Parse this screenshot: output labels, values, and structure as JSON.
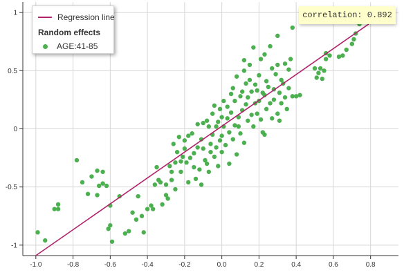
{
  "chart_data": {
    "type": "scatter",
    "title": "",
    "xlabel": "",
    "ylabel": "",
    "xlim": [
      -1.07,
      0.95
    ],
    "ylim": [
      -1.09,
      1.09
    ],
    "x_ticks": [
      -1.0,
      -0.8,
      -0.6,
      -0.4,
      -0.2,
      0.0,
      0.2,
      0.4,
      0.6,
      0.8
    ],
    "x_tick_labels": [
      "-1.0",
      "-0.8",
      "-0.6",
      "-0.4",
      "-0.2",
      "0.0",
      "0.2",
      "0.4",
      "0.6",
      "0.8"
    ],
    "y_ticks": [
      -1,
      -0.5,
      0,
      0.5,
      1
    ],
    "y_tick_labels": [
      "-1",
      "-0.5",
      "0",
      "0.5",
      "1"
    ],
    "grid": true,
    "legend_position": "top-left",
    "regression_line": {
      "name": "Regression line",
      "color": "#b0246c",
      "points": [
        [
          -1.0,
          -1.09
        ],
        [
          0.87,
          0.99
        ]
      ]
    },
    "legend": {
      "line_label": "Regression line",
      "group_title": "Random effects"
    },
    "annotation": "correlation: 0.892",
    "series": [
      {
        "name": "AGE:41-85",
        "color": "#4caf50",
        "points": [
          [
            -0.99,
            -0.89
          ],
          [
            -0.95,
            -0.96
          ],
          [
            -0.9,
            -0.69
          ],
          [
            -0.88,
            -0.69
          ],
          [
            -0.88,
            -0.65
          ],
          [
            -0.78,
            -0.27
          ],
          [
            -0.75,
            -0.46
          ],
          [
            -0.72,
            -0.56
          ],
          [
            -0.7,
            -0.41
          ],
          [
            -0.67,
            -0.36
          ],
          [
            -0.67,
            -0.57
          ],
          [
            -0.66,
            -0.49
          ],
          [
            -0.64,
            -0.37
          ],
          [
            -0.64,
            -0.47
          ],
          [
            -0.62,
            -0.49
          ],
          [
            -0.61,
            -0.86
          ],
          [
            -0.6,
            -0.83
          ],
          [
            -0.6,
            -0.66
          ],
          [
            -0.59,
            -0.97
          ],
          [
            -0.55,
            -0.58
          ],
          [
            -0.52,
            -0.9
          ],
          [
            -0.5,
            -0.88
          ],
          [
            -0.48,
            -0.72
          ],
          [
            -0.46,
            -0.78
          ],
          [
            -0.45,
            -0.58
          ],
          [
            -0.43,
            -0.75
          ],
          [
            -0.42,
            -0.89
          ],
          [
            -0.4,
            -0.69
          ],
          [
            -0.38,
            -0.66
          ],
          [
            -0.37,
            -0.69
          ],
          [
            -0.36,
            -0.48
          ],
          [
            -0.35,
            -0.33
          ],
          [
            -0.34,
            -0.44
          ],
          [
            -0.33,
            -0.46
          ],
          [
            -0.32,
            -0.65
          ],
          [
            -0.3,
            -0.48
          ],
          [
            -0.3,
            -0.57
          ],
          [
            -0.29,
            -0.6
          ],
          [
            -0.28,
            -0.32
          ],
          [
            -0.27,
            -0.44
          ],
          [
            -0.27,
            -0.37
          ],
          [
            -0.26,
            -0.13
          ],
          [
            -0.25,
            -0.29
          ],
          [
            -0.25,
            -0.52
          ],
          [
            -0.24,
            -0.2
          ],
          [
            -0.23,
            -0.07
          ],
          [
            -0.22,
            -0.28
          ],
          [
            -0.22,
            -0.37
          ],
          [
            -0.21,
            -0.24
          ],
          [
            -0.2,
            -0.1
          ],
          [
            -0.2,
            -0.17
          ],
          [
            -0.19,
            -0.29
          ],
          [
            -0.18,
            -0.06
          ],
          [
            -0.18,
            -0.46
          ],
          [
            -0.17,
            -0.25
          ],
          [
            -0.16,
            -0.04
          ],
          [
            -0.15,
            -0.21
          ],
          [
            -0.15,
            -0.33
          ],
          [
            -0.14,
            -0.43
          ],
          [
            -0.13,
            -0.16
          ],
          [
            -0.13,
            0.04
          ],
          [
            -0.12,
            -0.35
          ],
          [
            -0.11,
            -0.48
          ],
          [
            -0.11,
            -0.09
          ],
          [
            -0.1,
            -0.17
          ],
          [
            -0.1,
            0.05
          ],
          [
            -0.09,
            -0.27
          ],
          [
            -0.08,
            0.07
          ],
          [
            -0.08,
            -0.3
          ],
          [
            -0.07,
            0.02
          ],
          [
            -0.07,
            -0.37
          ],
          [
            -0.06,
            -0.13
          ],
          [
            -0.06,
            -0.2
          ],
          [
            -0.05,
            0.13
          ],
          [
            -0.05,
            -0.05
          ],
          [
            -0.04,
            -0.24
          ],
          [
            -0.04,
            0.2
          ],
          [
            -0.03,
            0.02
          ],
          [
            -0.03,
            -0.16
          ],
          [
            -0.02,
            0.06
          ],
          [
            -0.02,
            -0.32
          ],
          [
            -0.01,
            0.17
          ],
          [
            -0.01,
            -0.1
          ],
          [
            0.0,
            0.1
          ],
          [
            0.0,
            -0.06
          ],
          [
            0.0,
            -0.2
          ],
          [
            0.01,
            0.24
          ],
          [
            0.01,
            0.02
          ],
          [
            0.02,
            -0.14
          ],
          [
            0.03,
            0.19
          ],
          [
            0.03,
            0.09
          ],
          [
            0.04,
            -0.03
          ],
          [
            0.04,
            -0.3
          ],
          [
            0.05,
            0.3
          ],
          [
            0.05,
            0.14
          ],
          [
            0.06,
            0.35
          ],
          [
            0.06,
            -0.09
          ],
          [
            0.07,
            0.03
          ],
          [
            0.07,
            0.24
          ],
          [
            0.08,
            0.45
          ],
          [
            0.08,
            -0.22
          ],
          [
            0.09,
            0.1
          ],
          [
            0.09,
            0.02
          ],
          [
            0.1,
            0.28
          ],
          [
            0.1,
            -0.04
          ],
          [
            0.11,
            0.32
          ],
          [
            0.11,
            0.16
          ],
          [
            0.12,
            0.5
          ],
          [
            0.12,
            -0.12
          ],
          [
            0.13,
            0.39
          ],
          [
            0.13,
            0.21
          ],
          [
            0.14,
            0.07
          ],
          [
            0.14,
            0.27
          ],
          [
            0.15,
            0.42
          ],
          [
            0.15,
            0.55
          ],
          [
            0.16,
            0.32
          ],
          [
            0.16,
            0.12
          ],
          [
            0.17,
            0.7
          ],
          [
            0.17,
            0.02
          ],
          [
            0.18,
            0.22
          ],
          [
            0.18,
            0.38
          ],
          [
            0.19,
            0.13
          ],
          [
            0.19,
            0.33
          ],
          [
            0.2,
            0.24
          ],
          [
            0.2,
            0.46
          ],
          [
            0.21,
            0.6
          ],
          [
            0.21,
            0.08
          ],
          [
            0.22,
            0.31
          ],
          [
            0.22,
            -0.03
          ],
          [
            0.23,
            0.29
          ],
          [
            0.23,
            0.64
          ],
          [
            0.24,
            0.17
          ],
          [
            0.24,
            0.41
          ],
          [
            0.25,
            0.36
          ],
          [
            0.26,
            0.22
          ],
          [
            0.27,
            0.52
          ],
          [
            0.27,
            0.09
          ],
          [
            0.28,
            0.34
          ],
          [
            0.28,
            0.25
          ],
          [
            0.29,
            0.47
          ],
          [
            0.3,
            0.13
          ],
          [
            0.3,
            0.55
          ],
          [
            0.31,
            0.31
          ],
          [
            0.32,
            0.42
          ],
          [
            0.32,
            0.22
          ],
          [
            0.33,
            0.39
          ],
          [
            0.34,
            0.27
          ],
          [
            0.34,
            0.56
          ],
          [
            0.35,
            0.17
          ],
          [
            0.36,
            0.51
          ],
          [
            0.36,
            0.35
          ],
          [
            0.38,
            0.28
          ],
          [
            0.4,
            0.28
          ],
          [
            0.42,
            0.29
          ],
          [
            0.38,
            0.87
          ],
          [
            0.37,
            0.6
          ],
          [
            0.3,
            0.8
          ],
          [
            0.31,
            0.07
          ],
          [
            0.26,
            0.71
          ],
          [
            0.12,
            0.59
          ],
          [
            0.23,
            -0.05
          ],
          [
            0.5,
            0.52
          ],
          [
            0.51,
            0.44
          ],
          [
            0.52,
            0.48
          ],
          [
            0.53,
            0.52
          ],
          [
            0.54,
            0.43
          ],
          [
            0.55,
            0.5
          ],
          [
            0.56,
            0.6
          ],
          [
            0.58,
            0.63
          ],
          [
            0.56,
            0.65
          ],
          [
            0.63,
            0.62
          ],
          [
            0.65,
            0.63
          ],
          [
            0.67,
            0.68
          ],
          [
            0.7,
            0.73
          ],
          [
            0.71,
            0.77
          ],
          [
            0.72,
            0.82
          ],
          [
            0.74,
            0.9
          ],
          [
            0.75,
            0.97
          ],
          [
            0.76,
            0.96
          ],
          [
            0.79,
            0.96
          ],
          [
            0.8,
            0.97
          ],
          [
            0.82,
            1.01
          ],
          [
            0.84,
            0.97
          ]
        ]
      }
    ]
  }
}
